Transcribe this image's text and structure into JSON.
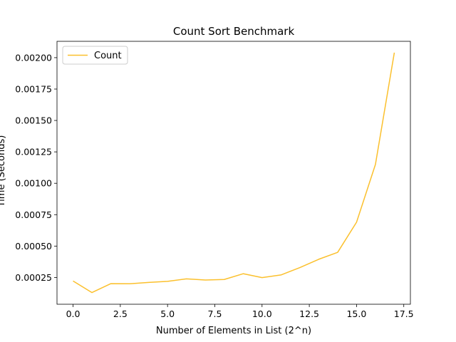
{
  "chart_data": {
    "type": "line",
    "title": "Count Sort Benchmark",
    "xlabel": "Number of Elements in List (2^n)",
    "ylabel": "Time (Seconds)",
    "xlim": [
      -0.85,
      17.85
    ],
    "ylim": [
      3.7e-05,
      0.00213
    ],
    "x_ticks": [
      0.0,
      2.5,
      5.0,
      7.5,
      10.0,
      12.5,
      15.0,
      17.5
    ],
    "x_tick_labels": [
      "0.0",
      "2.5",
      "5.0",
      "7.5",
      "10.0",
      "12.5",
      "15.0",
      "17.5"
    ],
    "y_ticks": [
      0.00025,
      0.0005,
      0.00075,
      0.001,
      0.00125,
      0.0015,
      0.00175,
      0.002
    ],
    "y_tick_labels": [
      "0.00025",
      "0.00050",
      "0.00075",
      "0.00100",
      "0.00125",
      "0.00150",
      "0.00175",
      "0.00200"
    ],
    "grid": false,
    "legend_position": "upper-left",
    "series": [
      {
        "name": "Count",
        "color": "#fbc02d",
        "x": [
          0,
          1,
          2,
          3,
          4,
          5,
          6,
          7,
          8,
          9,
          10,
          11,
          12,
          13,
          14,
          15,
          16,
          17
        ],
        "values": [
          0.000222,
          0.00013,
          0.000201,
          0.0002,
          0.000211,
          0.000219,
          0.000239,
          0.00023,
          0.000234,
          0.00028,
          0.000249,
          0.00027,
          0.000329,
          0.000395,
          0.00045,
          0.00069,
          0.00115,
          0.00204
        ]
      }
    ]
  }
}
